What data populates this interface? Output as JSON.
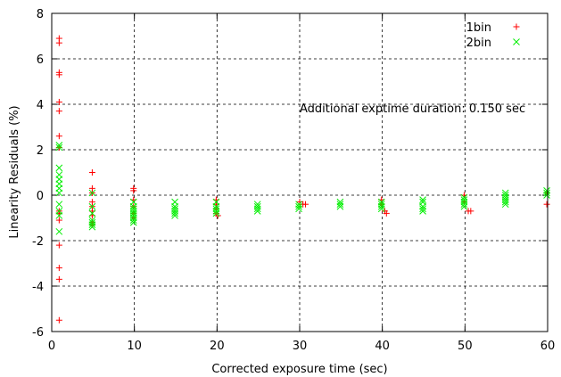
{
  "chart_data": {
    "type": "scatter",
    "title": "",
    "xlabel": "Corrected exposure time (sec)",
    "ylabel": "Linearity Residuals (%)",
    "xlim": [
      0,
      60
    ],
    "ylim": [
      -6,
      8
    ],
    "xticks": [
      0,
      10,
      20,
      30,
      40,
      50,
      60
    ],
    "yticks": [
      -6,
      -4,
      -2,
      0,
      2,
      4,
      6,
      8
    ],
    "grid": true,
    "legend_position": "top-right",
    "annotation": "Additional exptime duration: 0.150 sec",
    "series": [
      {
        "name": "1bin",
        "color": "#ff0000",
        "marker": "plus",
        "points": [
          [
            0.9,
            6.9
          ],
          [
            0.9,
            6.7
          ],
          [
            0.9,
            5.4
          ],
          [
            0.9,
            5.3
          ],
          [
            0.9,
            4.1
          ],
          [
            0.9,
            3.7
          ],
          [
            0.9,
            2.6
          ],
          [
            0.9,
            2.1
          ],
          [
            0.9,
            -0.7
          ],
          [
            0.9,
            -0.8
          ],
          [
            0.9,
            -1.1
          ],
          [
            0.9,
            -2.2
          ],
          [
            0.9,
            -3.2
          ],
          [
            0.9,
            -3.7
          ],
          [
            0.9,
            -5.5
          ],
          [
            4.9,
            1.0
          ],
          [
            4.9,
            0.3
          ],
          [
            4.9,
            0.1
          ],
          [
            4.9,
            -0.3
          ],
          [
            4.9,
            -0.5
          ],
          [
            4.9,
            -0.7
          ],
          [
            4.9,
            -0.9
          ],
          [
            4.9,
            -1.2
          ],
          [
            4.9,
            -1.3
          ],
          [
            9.9,
            0.3
          ],
          [
            9.9,
            0.2
          ],
          [
            9.9,
            -0.2
          ],
          [
            9.9,
            -0.5
          ],
          [
            9.9,
            -0.8
          ],
          [
            9.9,
            -1.0
          ],
          [
            19.9,
            -0.2
          ],
          [
            19.9,
            -0.4
          ],
          [
            19.9,
            -0.6
          ],
          [
            19.9,
            -0.8
          ],
          [
            20.1,
            -0.9
          ],
          [
            30.0,
            -0.3
          ],
          [
            30.4,
            -0.4
          ],
          [
            30.7,
            -0.4
          ],
          [
            39.9,
            -0.2
          ],
          [
            39.9,
            -0.4
          ],
          [
            40.3,
            -0.7
          ],
          [
            40.5,
            -0.8
          ],
          [
            49.9,
            0.0
          ],
          [
            49.9,
            -0.3
          ],
          [
            50.4,
            -0.7
          ],
          [
            50.7,
            -0.7
          ],
          [
            59.9,
            0.1
          ],
          [
            59.9,
            -0.4
          ]
        ]
      },
      {
        "name": "2bin",
        "color": "#00ee00",
        "marker": "cross",
        "points": [
          [
            0.9,
            2.2
          ],
          [
            0.9,
            2.1
          ],
          [
            0.9,
            1.2
          ],
          [
            0.9,
            0.9
          ],
          [
            0.9,
            0.7
          ],
          [
            0.9,
            0.5
          ],
          [
            0.9,
            0.3
          ],
          [
            0.9,
            0.1
          ],
          [
            0.9,
            -0.4
          ],
          [
            0.9,
            -0.7
          ],
          [
            0.9,
            -0.9
          ],
          [
            0.9,
            -1.6
          ],
          [
            4.9,
            0.1
          ],
          [
            4.9,
            -0.5
          ],
          [
            4.9,
            -0.8
          ],
          [
            4.9,
            -1.1
          ],
          [
            4.9,
            -1.2
          ],
          [
            4.9,
            -1.3
          ],
          [
            4.9,
            -1.4
          ],
          [
            9.9,
            -0.3
          ],
          [
            9.9,
            -0.5
          ],
          [
            9.9,
            -0.6
          ],
          [
            9.9,
            -0.7
          ],
          [
            9.9,
            -0.8
          ],
          [
            9.9,
            -0.9
          ],
          [
            9.9,
            -1.0
          ],
          [
            9.9,
            -1.1
          ],
          [
            9.9,
            -1.2
          ],
          [
            14.9,
            -0.3
          ],
          [
            14.9,
            -0.5
          ],
          [
            14.9,
            -0.6
          ],
          [
            14.9,
            -0.7
          ],
          [
            14.9,
            -0.8
          ],
          [
            14.9,
            -0.9
          ],
          [
            19.9,
            -0.3
          ],
          [
            19.9,
            -0.5
          ],
          [
            19.9,
            -0.6
          ],
          [
            19.9,
            -0.7
          ],
          [
            19.9,
            -0.8
          ],
          [
            24.9,
            -0.4
          ],
          [
            24.9,
            -0.5
          ],
          [
            24.9,
            -0.6
          ],
          [
            24.9,
            -0.7
          ],
          [
            29.9,
            -0.4
          ],
          [
            29.9,
            -0.5
          ],
          [
            29.9,
            -0.6
          ],
          [
            34.9,
            -0.3
          ],
          [
            34.9,
            -0.4
          ],
          [
            34.9,
            -0.5
          ],
          [
            39.9,
            -0.3
          ],
          [
            39.9,
            -0.4
          ],
          [
            39.9,
            -0.5
          ],
          [
            39.9,
            -0.6
          ],
          [
            44.9,
            -0.2
          ],
          [
            44.9,
            -0.3
          ],
          [
            44.9,
            -0.5
          ],
          [
            44.9,
            -0.6
          ],
          [
            44.9,
            -0.7
          ],
          [
            49.9,
            -0.1
          ],
          [
            49.9,
            -0.2
          ],
          [
            49.9,
            -0.3
          ],
          [
            49.9,
            -0.4
          ],
          [
            49.9,
            -0.5
          ],
          [
            54.9,
            0.1
          ],
          [
            54.9,
            0.0
          ],
          [
            54.9,
            -0.1
          ],
          [
            54.9,
            -0.2
          ],
          [
            54.9,
            -0.3
          ],
          [
            54.9,
            -0.4
          ],
          [
            59.9,
            0.2
          ],
          [
            59.9,
            0.1
          ],
          [
            59.9,
            0.0
          ]
        ]
      }
    ]
  }
}
